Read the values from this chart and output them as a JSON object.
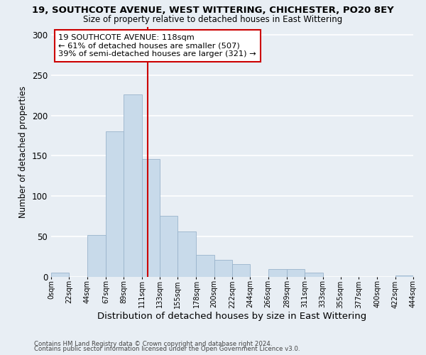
{
  "title": "19, SOUTHCOTE AVENUE, WEST WITTERING, CHICHESTER, PO20 8EY",
  "subtitle": "Size of property relative to detached houses in East Wittering",
  "xlabel": "Distribution of detached houses by size in East Wittering",
  "ylabel": "Number of detached properties",
  "bar_color": "#c8daea",
  "bar_edge_color": "#9ab4cc",
  "vline_x": 118,
  "vline_color": "#cc0000",
  "annotation_title": "19 SOUTHCOTE AVENUE: 118sqm",
  "annotation_line1": "← 61% of detached houses are smaller (507)",
  "annotation_line2": "39% of semi-detached houses are larger (321) →",
  "annotation_box_color": "white",
  "annotation_box_edge": "#cc0000",
  "bins_left": [
    0,
    22,
    44,
    67,
    89,
    111,
    133,
    155,
    178,
    200,
    222,
    244,
    266,
    289,
    311,
    333,
    355,
    377,
    400,
    422
  ],
  "bins_right": [
    22,
    44,
    67,
    89,
    111,
    133,
    155,
    178,
    200,
    222,
    244,
    266,
    289,
    311,
    333,
    355,
    377,
    400,
    422,
    444
  ],
  "heights": [
    5,
    0,
    52,
    180,
    226,
    146,
    76,
    56,
    27,
    21,
    16,
    0,
    10,
    10,
    5,
    0,
    0,
    0,
    0,
    2
  ],
  "xlim": [
    0,
    444
  ],
  "ylim": [
    0,
    310
  ],
  "yticks": [
    0,
    50,
    100,
    150,
    200,
    250,
    300
  ],
  "xtick_labels": [
    "0sqm",
    "22sqm",
    "44sqm",
    "67sqm",
    "89sqm",
    "111sqm",
    "133sqm",
    "155sqm",
    "178sqm",
    "200sqm",
    "222sqm",
    "244sqm",
    "266sqm",
    "289sqm",
    "311sqm",
    "333sqm",
    "355sqm",
    "377sqm",
    "400sqm",
    "422sqm",
    "444sqm"
  ],
  "xtick_positions": [
    0,
    22,
    44,
    67,
    89,
    111,
    133,
    155,
    178,
    200,
    222,
    244,
    266,
    289,
    311,
    333,
    355,
    377,
    400,
    422,
    444
  ],
  "footer1": "Contains HM Land Registry data © Crown copyright and database right 2024.",
  "footer2": "Contains public sector information licensed under the Open Government Licence v3.0.",
  "background_color": "#e8eef4",
  "plot_bg_color": "#e8eef4",
  "grid_color": "#ffffff",
  "title_fontsize": 9.5,
  "subtitle_fontsize": 8.5,
  "ylabel_fontsize": 8.5,
  "xlabel_fontsize": 9.5
}
